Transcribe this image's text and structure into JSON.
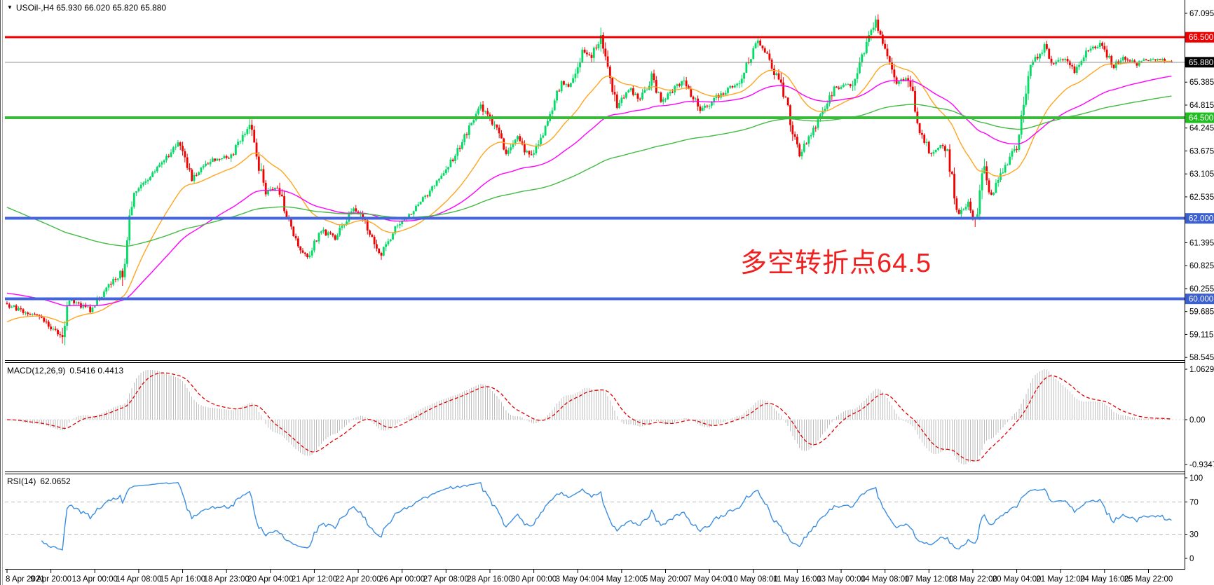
{
  "header": {
    "arrow": "▼",
    "symbol_period": "USOil-,H4",
    "quotes": "65.930 66.020 65.820 65.880"
  },
  "panels": {
    "macd": {
      "name": "MACD(12,26,9)",
      "values": "0.5416 0.4413"
    },
    "rsi": {
      "name": "RSI(14)",
      "values": "62.0652"
    }
  },
  "annotation": {
    "text": "多空转折点64.5",
    "color": "#F02020"
  },
  "chart_data": {
    "type": "candlestick",
    "title": "USOil-,H4 65.930 66.020 65.820 65.880",
    "symbol": "USOil-",
    "timeframe": "H4",
    "quote_ohlc": {
      "open": "65.930",
      "high": "66.020",
      "low": "65.820",
      "close": "65.880"
    },
    "bar_count": 505,
    "bars_per_time_label": 19,
    "last_close": 65.88,
    "visible_price_range": [
      58.545,
      67.42
    ],
    "grid": "off",
    "price_keyframes": [
      [
        0,
        59.85
      ],
      [
        14,
        59.55
      ],
      [
        24,
        59.05
      ],
      [
        27,
        59.95
      ],
      [
        36,
        59.75
      ],
      [
        50,
        60.7
      ],
      [
        55,
        62.6
      ],
      [
        62,
        63.1
      ],
      [
        74,
        63.85
      ],
      [
        80,
        63.0
      ],
      [
        89,
        63.45
      ],
      [
        97,
        63.55
      ],
      [
        105,
        64.3
      ],
      [
        112,
        62.6
      ],
      [
        117,
        62.8
      ],
      [
        124,
        61.5
      ],
      [
        130,
        61.05
      ],
      [
        136,
        61.7
      ],
      [
        142,
        61.5
      ],
      [
        150,
        62.25
      ],
      [
        155,
        61.9
      ],
      [
        162,
        61.1
      ],
      [
        168,
        61.75
      ],
      [
        176,
        62.2
      ],
      [
        185,
        62.8
      ],
      [
        194,
        63.6
      ],
      [
        205,
        64.8
      ],
      [
        211,
        64.3
      ],
      [
        216,
        63.65
      ],
      [
        221,
        64.0
      ],
      [
        226,
        63.5
      ],
      [
        232,
        64.1
      ],
      [
        240,
        65.4
      ],
      [
        244,
        65.3
      ],
      [
        249,
        66.15
      ],
      [
        253,
        66.0
      ],
      [
        257,
        66.55
      ],
      [
        264,
        64.8
      ],
      [
        270,
        65.2
      ],
      [
        274,
        64.95
      ],
      [
        279,
        65.5
      ],
      [
        283,
        64.9
      ],
      [
        293,
        65.45
      ],
      [
        300,
        64.65
      ],
      [
        309,
        65.1
      ],
      [
        317,
        65.4
      ],
      [
        325,
        66.45
      ],
      [
        329,
        66.0
      ],
      [
        335,
        65.3
      ],
      [
        343,
        63.6
      ],
      [
        350,
        64.3
      ],
      [
        358,
        65.25
      ],
      [
        366,
        65.3
      ],
      [
        376,
        66.95
      ],
      [
        380,
        66.3
      ],
      [
        385,
        65.3
      ],
      [
        390,
        65.55
      ],
      [
        395,
        64.15
      ],
      [
        400,
        63.6
      ],
      [
        406,
        63.85
      ],
      [
        412,
        62.1
      ],
      [
        416,
        62.35
      ],
      [
        419,
        61.95
      ],
      [
        423,
        63.3
      ],
      [
        426,
        62.5
      ],
      [
        431,
        63.2
      ],
      [
        437,
        63.9
      ],
      [
        443,
        65.85
      ],
      [
        449,
        66.25
      ],
      [
        453,
        65.8
      ],
      [
        458,
        66.0
      ],
      [
        462,
        65.7
      ],
      [
        468,
        66.2
      ],
      [
        473,
        66.35
      ],
      [
        479,
        65.8
      ],
      [
        483,
        66.0
      ],
      [
        489,
        65.85
      ],
      [
        495,
        66.0
      ],
      [
        504,
        65.88
      ]
    ],
    "y_axis_ticks": [
      "67.095",
      "65.385",
      "64.815",
      "64.245",
      "63.675",
      "63.105",
      "62.535",
      "61.395",
      "60.825",
      "60.255",
      "59.685",
      "59.115",
      "58.545"
    ],
    "price_badges": [
      {
        "label": "66.500",
        "price": 66.5,
        "bg": "#EE0000"
      },
      {
        "label": "65.880",
        "price": 65.88,
        "bg": "#000000"
      },
      {
        "label": "64.500",
        "price": 64.5,
        "bg": "#1FBE1F"
      },
      {
        "label": "62.000",
        "price": 62.0,
        "bg": "#3A5FD0"
      },
      {
        "label": "60.000",
        "price": 60.0,
        "bg": "#3A5FD0"
      }
    ],
    "horizontal_lines": [
      {
        "price": 66.5,
        "color": "#EE0000",
        "width": 3
      },
      {
        "price": 64.5,
        "color": "#3ABA3A",
        "width": 4
      },
      {
        "price": 62.0,
        "color": "#4466DD",
        "width": 4
      },
      {
        "price": 60.0,
        "color": "#4466DD",
        "width": 4
      }
    ],
    "current_price_line": {
      "price": 65.88,
      "color": "#909090"
    },
    "candle_colors": {
      "up": "#00DC64",
      "down": "#F20000"
    },
    "moving_averages": [
      {
        "period": 30,
        "color": "#FFA520",
        "init": 59.4
      },
      {
        "period": 80,
        "color": "#FF00FF",
        "init": 60.15
      },
      {
        "period": 200,
        "color": "#44BB44",
        "init": 62.3
      }
    ],
    "macd": {
      "fast": 12,
      "slow": 26,
      "signal": 9,
      "axis_ticks": [
        "1.0629",
        "0.00",
        "-0.9347"
      ],
      "histogram_color": "#BEBEBE",
      "signal_color": "#E00000"
    },
    "rsi": {
      "period": 14,
      "axis_ticks": [
        "100",
        "70",
        "30",
        "0"
      ],
      "levels": [
        70,
        30
      ],
      "line_color": "#3C8EE0",
      "level_color": "#BBBBBB"
    },
    "time_labels": [
      "8 Apr 2021",
      "9 Apr 20:00",
      "13 Apr 00:00",
      "14 Apr 08:00",
      "15 Apr 16:00",
      "18 Apr 23:00",
      "20 Apr 04:00",
      "21 Apr 12:00",
      "22 Apr 20:00",
      "26 Apr 00:00",
      "27 Apr 08:00",
      "28 Apr 16:00",
      "30 Apr 00:00",
      "3 May 04:00",
      "4 May 12:00",
      "5 May 20:00",
      "7 May 04:00",
      "10 May 08:00",
      "11 May 16:00",
      "13 May 00:00",
      "14 May 08:00",
      "17 May 12:00",
      "18 May 22:00",
      "20 May 04:00",
      "21 May 12:00",
      "24 May 16:00",
      "25 May 22:00"
    ],
    "annotation": {
      "text": "多空转折点64.5",
      "color": "#F02020"
    }
  }
}
